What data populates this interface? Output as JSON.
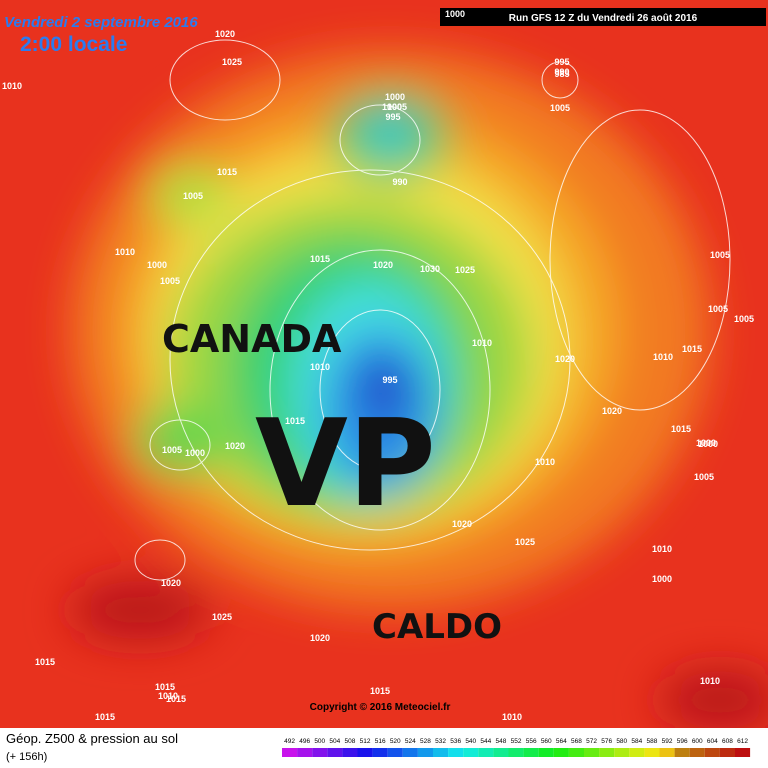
{
  "header": {
    "date": "Vendredi 2 septembre 2016",
    "time": "2:00 locale",
    "run": "Run GFS 12 Z du Vendredi 26 août 2016"
  },
  "overlay": {
    "left": "CANADA",
    "center": "VP",
    "bottom": "CALDO"
  },
  "copyright": "Copyright © 2016 Meteociel.fr",
  "legend": {
    "title": "Géop. Z500 & pression au sol",
    "subtitle": "(+ 156h)",
    "values": [
      492,
      496,
      500,
      504,
      508,
      512,
      516,
      520,
      524,
      528,
      532,
      536,
      540,
      544,
      548,
      552,
      556,
      560,
      564,
      568,
      572,
      576,
      580,
      584,
      588,
      592,
      596,
      600,
      604,
      608,
      612
    ]
  },
  "isobar_labels": [
    "1000",
    "1020",
    "1010",
    "1025",
    "995",
    "990",
    "985",
    "1000",
    "1005",
    "1000",
    "995",
    "990",
    "1005",
    "1015",
    "1005",
    "1010",
    "1000",
    "1005",
    "1015",
    "1020",
    "1030",
    "1025",
    "1010",
    "1020",
    "1005",
    "1005",
    "1020",
    "1010",
    "1015",
    "1005",
    "1000",
    "995",
    "1010",
    "1020",
    "1010",
    "1020",
    "1025",
    "1010",
    "1000",
    "1005",
    "1015",
    "1000",
    "1020",
    "1025",
    "1020",
    "1015",
    "1015",
    "1015",
    "1015",
    "1010",
    "1010",
    "1015",
    "1005",
    "1000",
    "1010",
    "1015"
  ]
}
